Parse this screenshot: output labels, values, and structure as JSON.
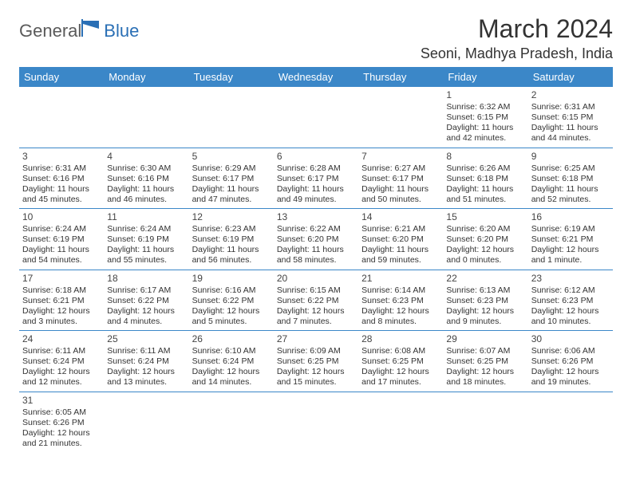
{
  "brand": {
    "part1": "General",
    "part2": "Blue"
  },
  "title": "March 2024",
  "location": "Seoni, Madhya Pradesh, India",
  "colors": {
    "header_bg": "#3b87c8",
    "header_text": "#ffffff",
    "row_border": "#3b87c8",
    "brand_gray": "#5a5a5a",
    "brand_blue": "#2a6fb5",
    "text": "#333333",
    "background": "#ffffff"
  },
  "typography": {
    "title_fontsize": 32,
    "location_fontsize": 18,
    "header_fontsize": 13,
    "cell_fontsize": 10.5,
    "daynum_fontsize": 12
  },
  "weekdays": [
    "Sunday",
    "Monday",
    "Tuesday",
    "Wednesday",
    "Thursday",
    "Friday",
    "Saturday"
  ],
  "weeks": [
    [
      null,
      null,
      null,
      null,
      null,
      {
        "n": "1",
        "sr": "Sunrise: 6:32 AM",
        "ss": "Sunset: 6:15 PM",
        "d1": "Daylight: 11 hours",
        "d2": "and 42 minutes."
      },
      {
        "n": "2",
        "sr": "Sunrise: 6:31 AM",
        "ss": "Sunset: 6:15 PM",
        "d1": "Daylight: 11 hours",
        "d2": "and 44 minutes."
      }
    ],
    [
      {
        "n": "3",
        "sr": "Sunrise: 6:31 AM",
        "ss": "Sunset: 6:16 PM",
        "d1": "Daylight: 11 hours",
        "d2": "and 45 minutes."
      },
      {
        "n": "4",
        "sr": "Sunrise: 6:30 AM",
        "ss": "Sunset: 6:16 PM",
        "d1": "Daylight: 11 hours",
        "d2": "and 46 minutes."
      },
      {
        "n": "5",
        "sr": "Sunrise: 6:29 AM",
        "ss": "Sunset: 6:17 PM",
        "d1": "Daylight: 11 hours",
        "d2": "and 47 minutes."
      },
      {
        "n": "6",
        "sr": "Sunrise: 6:28 AM",
        "ss": "Sunset: 6:17 PM",
        "d1": "Daylight: 11 hours",
        "d2": "and 49 minutes."
      },
      {
        "n": "7",
        "sr": "Sunrise: 6:27 AM",
        "ss": "Sunset: 6:17 PM",
        "d1": "Daylight: 11 hours",
        "d2": "and 50 minutes."
      },
      {
        "n": "8",
        "sr": "Sunrise: 6:26 AM",
        "ss": "Sunset: 6:18 PM",
        "d1": "Daylight: 11 hours",
        "d2": "and 51 minutes."
      },
      {
        "n": "9",
        "sr": "Sunrise: 6:25 AM",
        "ss": "Sunset: 6:18 PM",
        "d1": "Daylight: 11 hours",
        "d2": "and 52 minutes."
      }
    ],
    [
      {
        "n": "10",
        "sr": "Sunrise: 6:24 AM",
        "ss": "Sunset: 6:19 PM",
        "d1": "Daylight: 11 hours",
        "d2": "and 54 minutes."
      },
      {
        "n": "11",
        "sr": "Sunrise: 6:24 AM",
        "ss": "Sunset: 6:19 PM",
        "d1": "Daylight: 11 hours",
        "d2": "and 55 minutes."
      },
      {
        "n": "12",
        "sr": "Sunrise: 6:23 AM",
        "ss": "Sunset: 6:19 PM",
        "d1": "Daylight: 11 hours",
        "d2": "and 56 minutes."
      },
      {
        "n": "13",
        "sr": "Sunrise: 6:22 AM",
        "ss": "Sunset: 6:20 PM",
        "d1": "Daylight: 11 hours",
        "d2": "and 58 minutes."
      },
      {
        "n": "14",
        "sr": "Sunrise: 6:21 AM",
        "ss": "Sunset: 6:20 PM",
        "d1": "Daylight: 11 hours",
        "d2": "and 59 minutes."
      },
      {
        "n": "15",
        "sr": "Sunrise: 6:20 AM",
        "ss": "Sunset: 6:20 PM",
        "d1": "Daylight: 12 hours",
        "d2": "and 0 minutes."
      },
      {
        "n": "16",
        "sr": "Sunrise: 6:19 AM",
        "ss": "Sunset: 6:21 PM",
        "d1": "Daylight: 12 hours",
        "d2": "and 1 minute."
      }
    ],
    [
      {
        "n": "17",
        "sr": "Sunrise: 6:18 AM",
        "ss": "Sunset: 6:21 PM",
        "d1": "Daylight: 12 hours",
        "d2": "and 3 minutes."
      },
      {
        "n": "18",
        "sr": "Sunrise: 6:17 AM",
        "ss": "Sunset: 6:22 PM",
        "d1": "Daylight: 12 hours",
        "d2": "and 4 minutes."
      },
      {
        "n": "19",
        "sr": "Sunrise: 6:16 AM",
        "ss": "Sunset: 6:22 PM",
        "d1": "Daylight: 12 hours",
        "d2": "and 5 minutes."
      },
      {
        "n": "20",
        "sr": "Sunrise: 6:15 AM",
        "ss": "Sunset: 6:22 PM",
        "d1": "Daylight: 12 hours",
        "d2": "and 7 minutes."
      },
      {
        "n": "21",
        "sr": "Sunrise: 6:14 AM",
        "ss": "Sunset: 6:23 PM",
        "d1": "Daylight: 12 hours",
        "d2": "and 8 minutes."
      },
      {
        "n": "22",
        "sr": "Sunrise: 6:13 AM",
        "ss": "Sunset: 6:23 PM",
        "d1": "Daylight: 12 hours",
        "d2": "and 9 minutes."
      },
      {
        "n": "23",
        "sr": "Sunrise: 6:12 AM",
        "ss": "Sunset: 6:23 PM",
        "d1": "Daylight: 12 hours",
        "d2": "and 10 minutes."
      }
    ],
    [
      {
        "n": "24",
        "sr": "Sunrise: 6:11 AM",
        "ss": "Sunset: 6:24 PM",
        "d1": "Daylight: 12 hours",
        "d2": "and 12 minutes."
      },
      {
        "n": "25",
        "sr": "Sunrise: 6:11 AM",
        "ss": "Sunset: 6:24 PM",
        "d1": "Daylight: 12 hours",
        "d2": "and 13 minutes."
      },
      {
        "n": "26",
        "sr": "Sunrise: 6:10 AM",
        "ss": "Sunset: 6:24 PM",
        "d1": "Daylight: 12 hours",
        "d2": "and 14 minutes."
      },
      {
        "n": "27",
        "sr": "Sunrise: 6:09 AM",
        "ss": "Sunset: 6:25 PM",
        "d1": "Daylight: 12 hours",
        "d2": "and 15 minutes."
      },
      {
        "n": "28",
        "sr": "Sunrise: 6:08 AM",
        "ss": "Sunset: 6:25 PM",
        "d1": "Daylight: 12 hours",
        "d2": "and 17 minutes."
      },
      {
        "n": "29",
        "sr": "Sunrise: 6:07 AM",
        "ss": "Sunset: 6:25 PM",
        "d1": "Daylight: 12 hours",
        "d2": "and 18 minutes."
      },
      {
        "n": "30",
        "sr": "Sunrise: 6:06 AM",
        "ss": "Sunset: 6:26 PM",
        "d1": "Daylight: 12 hours",
        "d2": "and 19 minutes."
      }
    ],
    [
      {
        "n": "31",
        "sr": "Sunrise: 6:05 AM",
        "ss": "Sunset: 6:26 PM",
        "d1": "Daylight: 12 hours",
        "d2": "and 21 minutes."
      },
      null,
      null,
      null,
      null,
      null,
      null
    ]
  ]
}
